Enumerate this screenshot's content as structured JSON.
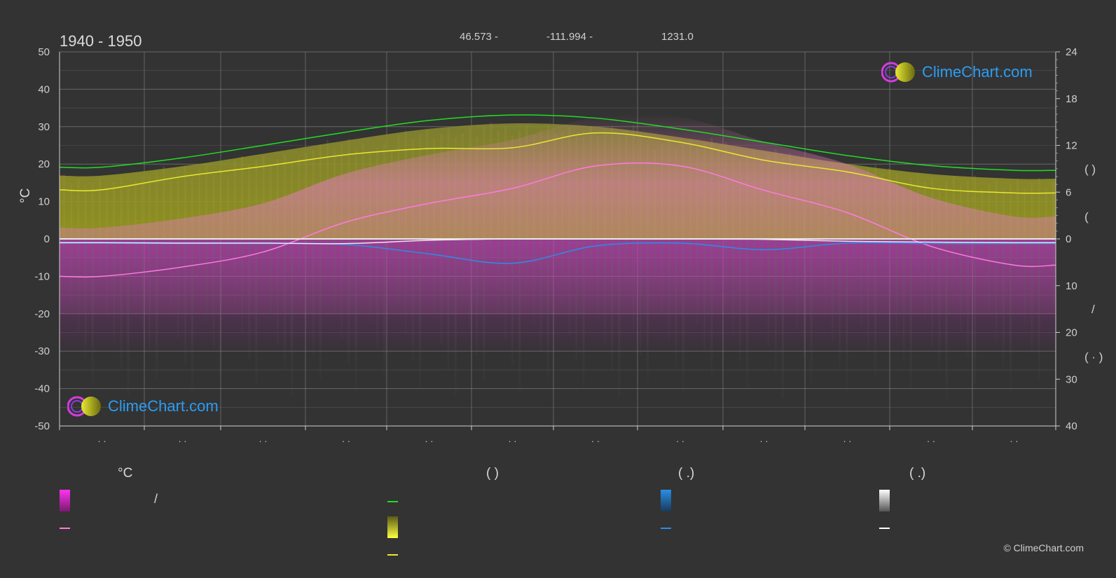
{
  "header": {
    "period": "1940 - 1950",
    "lat": "46.573 -",
    "lon": "-111.994 -",
    "elev": "1231.0"
  },
  "axes": {
    "left_unit": "°C",
    "left_ticks": [
      "50",
      "40",
      "30",
      "20",
      "10",
      "0",
      "-10",
      "-20",
      "-30",
      "-40",
      "-50"
    ],
    "right_top_ticks": [
      "24",
      "18",
      "12",
      "6",
      "0"
    ],
    "right_bottom_ticks": [
      "10",
      "20",
      "30",
      "40"
    ],
    "right_glyphs": [
      "(   )",
      "(",
      "/",
      "(  ·  )"
    ],
    "x_tick_text": "· ·"
  },
  "logo": {
    "text": "ClimeChart.com"
  },
  "legend": {
    "col1_head": "°C",
    "col1_slash": "/",
    "col2_head": "(          )",
    "col3_head": "(   .)",
    "col4_head": "(   .)"
  },
  "copyright": "© ClimeChart.com",
  "colors": {
    "background": "#333333",
    "daylight": "#22dd22",
    "sunshine": "#e8e832",
    "max_temp": "#ff7ae0",
    "precip": "#2a8ee8",
    "snow": "#ffffff",
    "grid": "#8a8a8a"
  },
  "chart_data": {
    "type": "line",
    "x_categories": 12,
    "left_axis": {
      "label": "°C",
      "ylim": [
        -50,
        50
      ]
    },
    "right_axis_top": {
      "ylim": [
        0,
        24
      ]
    },
    "right_axis_bottom": {
      "ylim": [
        0,
        40
      ],
      "inverted": true
    },
    "series": [
      {
        "key": "daylight",
        "axis": "right_top",
        "values": [
          9.2,
          10.4,
          12.0,
          13.7,
          15.2,
          15.9,
          15.5,
          14.1,
          12.4,
          10.7,
          9.4,
          8.8
        ]
      },
      {
        "key": "sunshine",
        "axis": "right_top",
        "values": [
          6.3,
          8.0,
          9.3,
          10.8,
          11.6,
          11.7,
          13.6,
          12.4,
          10.1,
          8.6,
          6.5,
          5.9
        ]
      },
      {
        "key": "temp_max_mean",
        "axis": "left",
        "values": [
          -10,
          -7.5,
          -3.5,
          4.5,
          9.5,
          13.5,
          19.5,
          19.5,
          13,
          7,
          -2,
          -7
        ]
      },
      {
        "key": "precip",
        "axis": "right_bottom",
        "values": [
          0.9,
          1.0,
          1.0,
          1.2,
          3.2,
          5.2,
          1.5,
          0.9,
          2.3,
          0.9,
          1.0,
          1.0
        ]
      },
      {
        "key": "snow",
        "axis": "right_bottom",
        "values": [
          0.8,
          0.9,
          0.9,
          1.0,
          0.3,
          0.0,
          0.0,
          0.0,
          0.1,
          0.5,
          0.7,
          0.8
        ]
      }
    ]
  }
}
